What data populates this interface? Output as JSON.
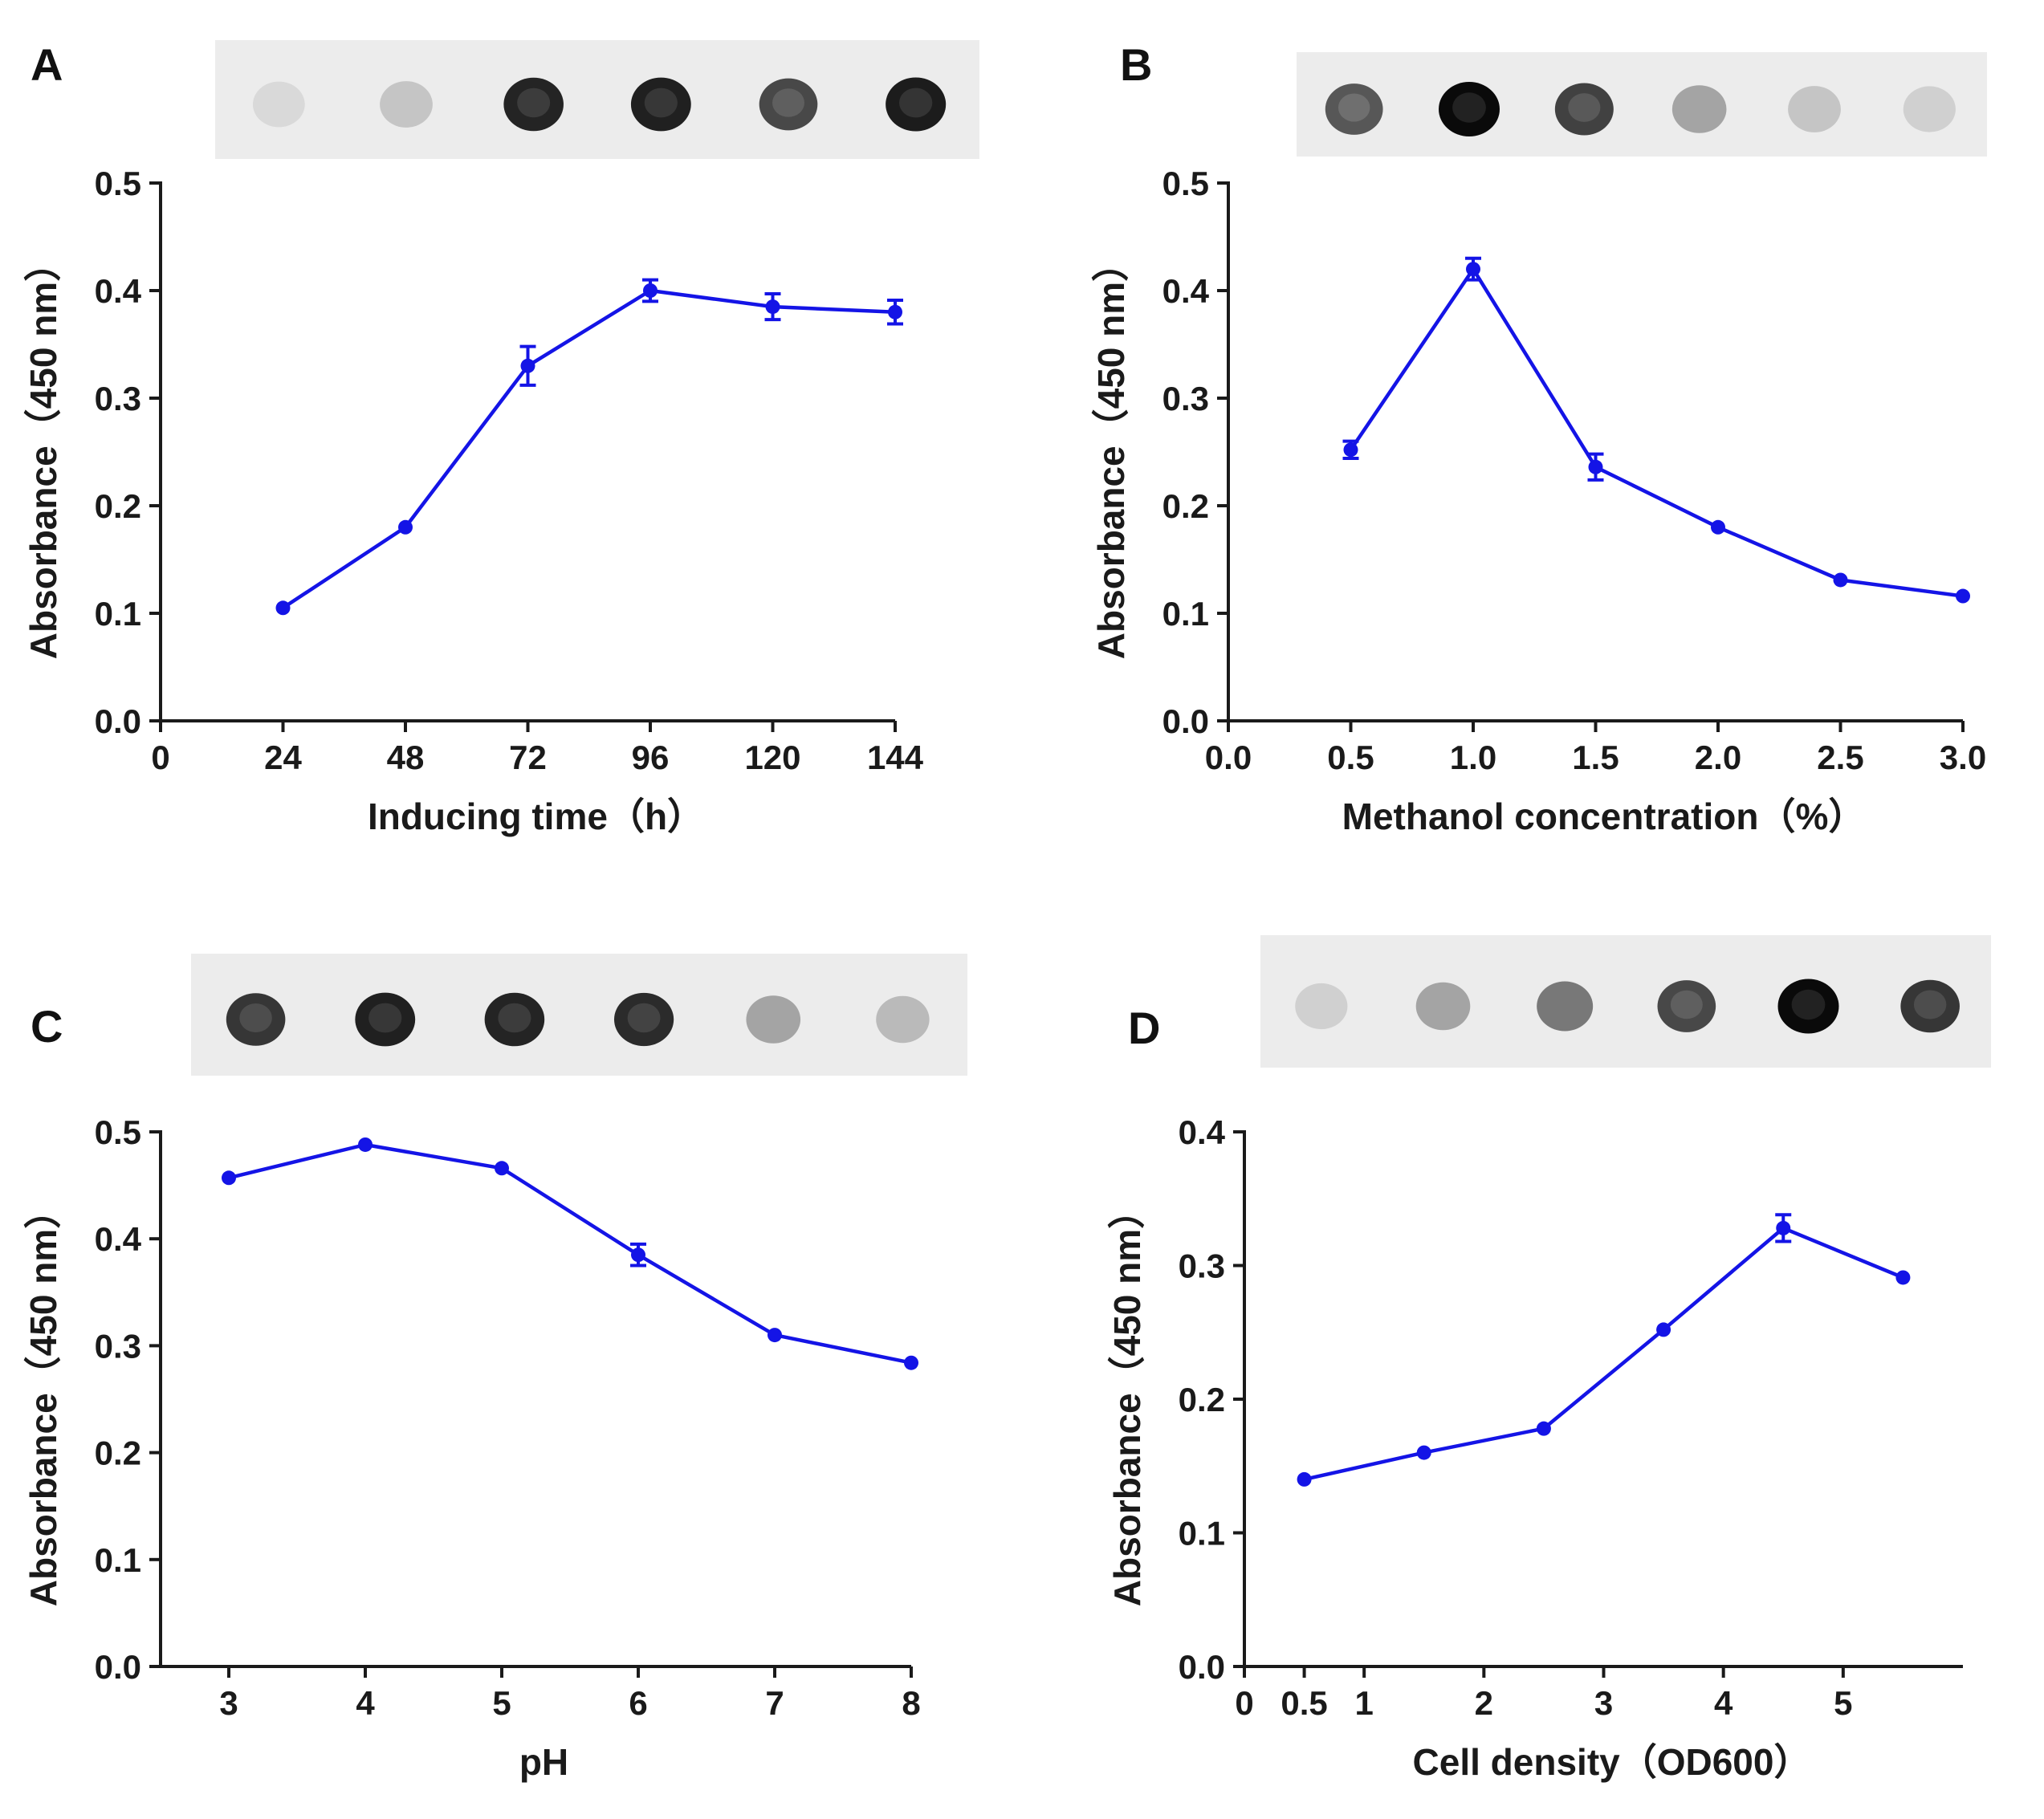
{
  "series_color": "#1414e6",
  "axis_color": "#1a1a1a",
  "chart_data": [
    {
      "panel": "A",
      "type": "line",
      "xlabel": "Inducing time（h）",
      "ylabel": "Absorbance（450 nm）",
      "xlim": [
        0,
        144
      ],
      "ylim": [
        0.0,
        0.5
      ],
      "xticks": [
        0,
        24,
        48,
        72,
        96,
        120,
        144
      ],
      "xtick_labels": [
        "0",
        "24",
        "48",
        "72",
        "96",
        "120",
        "144"
      ],
      "yticks": [
        0.0,
        0.1,
        0.2,
        0.3,
        0.4,
        0.5
      ],
      "ytick_labels": [
        "0.0",
        "0.1",
        "0.2",
        "0.3",
        "0.4",
        "0.5"
      ],
      "x": [
        24,
        48,
        72,
        96,
        120,
        144
      ],
      "y": [
        0.105,
        0.18,
        0.33,
        0.4,
        0.385,
        0.38
      ],
      "err": [
        0.0,
        0.0,
        0.018,
        0.01,
        0.012,
        0.011
      ],
      "blot_spots": [
        0.06,
        0.15,
        0.88,
        0.9,
        0.72,
        0.92
      ]
    },
    {
      "panel": "B",
      "type": "line",
      "xlabel": "Methanol concentration（%）",
      "ylabel": "Absorbance（450 nm）",
      "xlim": [
        0.0,
        3.0
      ],
      "ylim": [
        0.0,
        0.5
      ],
      "xticks": [
        0.0,
        0.5,
        1.0,
        1.5,
        2.0,
        2.5,
        3.0
      ],
      "xtick_labels": [
        "0.0",
        "0.5",
        "1.0",
        "1.5",
        "2.0",
        "2.5",
        "3.0"
      ],
      "yticks": [
        0.0,
        0.1,
        0.2,
        0.3,
        0.4,
        0.5
      ],
      "ytick_labels": [
        "0.0",
        "0.1",
        "0.2",
        "0.3",
        "0.4",
        "0.5"
      ],
      "x": [
        0.5,
        1.0,
        1.5,
        2.0,
        2.5,
        3.0
      ],
      "y": [
        0.252,
        0.42,
        0.236,
        0.18,
        0.131,
        0.116
      ],
      "err": [
        0.008,
        0.01,
        0.012,
        0.0,
        0.0,
        0.0
      ],
      "blot_spots": [
        0.65,
        1.0,
        0.75,
        0.3,
        0.15,
        0.1
      ]
    },
    {
      "panel": "C",
      "type": "line",
      "xlabel": "pH",
      "ylabel": "Absorbance（450 nm）",
      "xlim": [
        2.5,
        8.0
      ],
      "ylim": [
        0.0,
        0.5
      ],
      "xticks": [
        3,
        4,
        5,
        6,
        7,
        8
      ],
      "xtick_labels": [
        "3",
        "4",
        "5",
        "6",
        "7",
        "8"
      ],
      "yticks": [
        0.0,
        0.1,
        0.2,
        0.3,
        0.4,
        0.5
      ],
      "ytick_labels": [
        "0.0",
        "0.1",
        "0.2",
        "0.3",
        "0.4",
        "0.5"
      ],
      "x": [
        3,
        4,
        5,
        6,
        7,
        8
      ],
      "y": [
        0.457,
        0.488,
        0.466,
        0.385,
        0.31,
        0.284
      ],
      "err": [
        0.0,
        0.0,
        0.0,
        0.01,
        0.0,
        0.0
      ],
      "blot_spots": [
        0.8,
        0.9,
        0.88,
        0.85,
        0.3,
        0.2
      ]
    },
    {
      "panel": "D",
      "type": "line",
      "xlabel": "Cell density（OD600）",
      "ylabel": "Absorbance（450 nm）",
      "xlim": [
        0,
        6
      ],
      "ylim": [
        0.0,
        0.4
      ],
      "xticks": [
        0,
        0.5,
        1,
        2,
        3,
        4,
        5
      ],
      "xtick_labels": [
        "0",
        "0.5",
        "1",
        "2",
        "3",
        "4",
        "5"
      ],
      "yticks": [
        0.0,
        0.1,
        0.2,
        0.3,
        0.4
      ],
      "ytick_labels": [
        "0.0",
        "0.1",
        "0.2",
        "0.3",
        "0.4"
      ],
      "x": [
        0.5,
        1.5,
        2.5,
        3.5,
        4.5,
        5.5
      ],
      "y": [
        0.14,
        0.16,
        0.178,
        0.252,
        0.328,
        0.291
      ],
      "err": [
        0.0,
        0.0,
        0.0,
        0.0,
        0.01,
        0.0
      ],
      "blot_spots": [
        0.1,
        0.3,
        0.5,
        0.72,
        1.0,
        0.8
      ]
    }
  ]
}
